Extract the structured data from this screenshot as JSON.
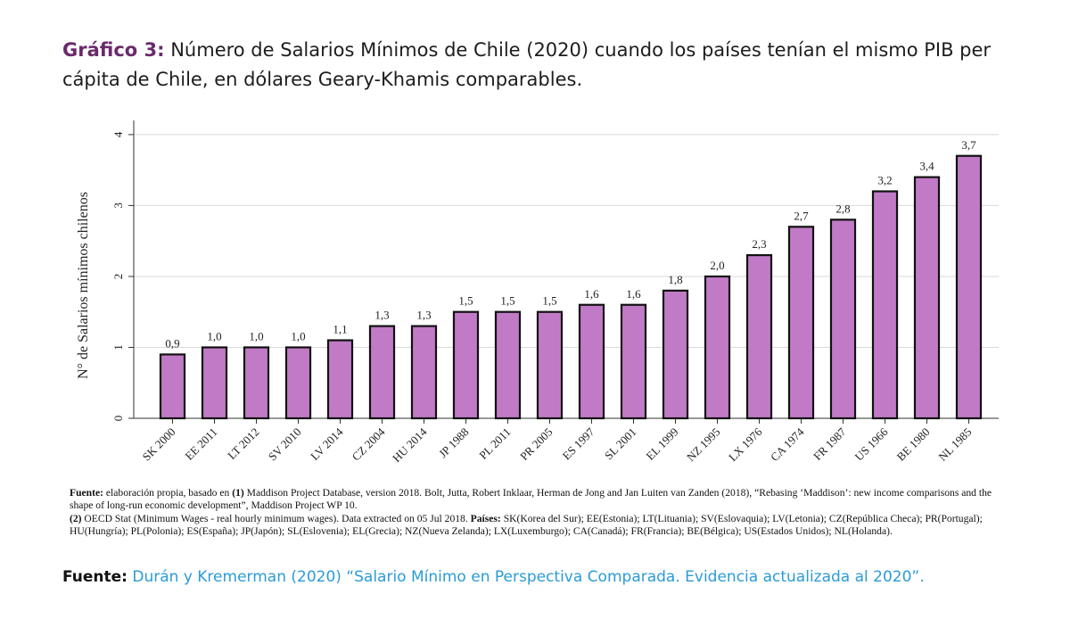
{
  "title": {
    "label": "Gráfico 3:",
    "text": "Número de Salarios Mínimos de Chile (2020) cuando los países tenían el mismo PIB per cápita de Chile, en dólares Geary-Khamis comparables."
  },
  "chart_data": {
    "type": "bar",
    "ylabel": "N° de Salarios mínimos chilenos",
    "ylim": [
      0,
      4.2
    ],
    "yticks": [
      "0",
      "1",
      "2",
      "3",
      "4"
    ],
    "grid": true,
    "bar_color": "#c17bc6",
    "bar_edge_color": "#111111",
    "categories": [
      "SK 2000",
      "EE 2011",
      "LT 2012",
      "SV 2010",
      "LV 2014",
      "CZ 2004",
      "HU 2014",
      "JP 1988",
      "PL 2011",
      "PR 2005",
      "ES 1997",
      "SL 2001",
      "EL 1999",
      "NZ 1995",
      "LX 1976",
      "CA 1974",
      "FR 1987",
      "US 1966",
      "BE 1980",
      "NL 1985"
    ],
    "values": [
      0.9,
      1.0,
      1.0,
      1.0,
      1.1,
      1.3,
      1.3,
      1.5,
      1.5,
      1.5,
      1.6,
      1.6,
      1.8,
      2.0,
      2.3,
      2.7,
      2.8,
      3.2,
      3.4,
      3.7
    ],
    "value_labels": [
      "0,9",
      "1,0",
      "1,0",
      "1,0",
      "1,1",
      "1,3",
      "1,3",
      "1,5",
      "1,5",
      "1,5",
      "1,6",
      "1,6",
      "1,8",
      "2,0",
      "2,3",
      "2,7",
      "2,8",
      "3,2",
      "3,4",
      "3,7"
    ]
  },
  "notes": {
    "fuente1_label": "Fuente:",
    "fuente1_a": " elaboración propia, basado en ",
    "ref1_num": "(1)",
    "fuente1_b": " Maddison Project Database, version 2018. Bolt, Jutta, Robert Inklaar, Herman de Jong and Jan Luiten van Zanden (2018), “Rebasing ‘Maddison’: new income comparisons and the shape of long-run economic development”, Maddison Project WP 10.",
    "ref2_num": "(2)",
    "fuente1_c": " OECD Stat (Minimum Wages - real hourly minimum wages). Data extracted on 05 Jul 2018. ",
    "paises_label": "Países:",
    "paises_text": " SK(Korea del Sur); EE(Estonia); LT(Lituania); SV(Eslovaquia); LV(Letonia); CZ(República Checa); PR(Portugal); HU(Hungría); PL(Polonia); ES(España); JP(Japón); SL(Eslovenia); EL(Grecia); NZ(Nueva Zelanda); LX(Luxemburgo); CA(Canadá); FR(Francia); BE(Bélgica); US(Estados Unidos); NL(Holanda)."
  },
  "source": {
    "label": "Fuente:",
    "text": "Durán y Kremerman (2020) “Salario Mínimo en Perspectiva Comparada. Evidencia actualizada al 2020”."
  }
}
